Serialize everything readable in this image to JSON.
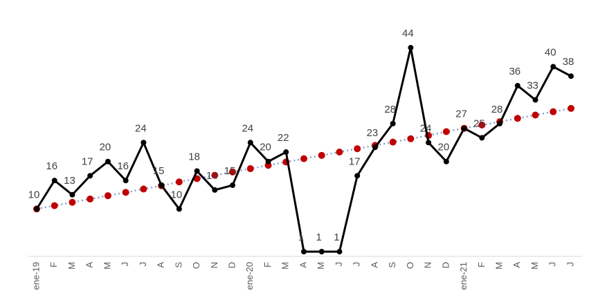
{
  "chart_data": {
    "type": "line",
    "categories": [
      "ene-19",
      "F",
      "M",
      "A",
      "M",
      "J",
      "J",
      "A",
      "S",
      "O",
      "N",
      "D",
      "ene-20",
      "F",
      "M",
      "A",
      "M",
      "J",
      "J",
      "A",
      "S",
      "O",
      "N",
      "D",
      "ene-21",
      "F",
      "M",
      "A",
      "M",
      "J",
      "J"
    ],
    "series": [
      {
        "color": "#000000",
        "data_labels": true,
        "values": [
          10,
          16,
          13,
          17,
          20,
          16,
          24,
          15,
          10,
          18,
          14,
          15,
          24,
          20,
          22,
          1,
          1,
          1,
          17,
          23,
          28,
          44,
          24,
          20,
          27,
          25,
          28,
          36,
          33,
          40,
          38
        ]
      },
      {
        "color": "#c00000",
        "line_color": "#7f9fcf",
        "data_labels": false,
        "values": [
          10.0,
          10.7,
          11.4,
          12.1,
          12.8,
          13.5,
          14.2,
          14.9,
          15.7,
          16.4,
          17.1,
          17.8,
          18.5,
          19.2,
          19.9,
          20.6,
          21.3,
          22.0,
          22.7,
          23.4,
          24.1,
          24.8,
          25.5,
          26.3,
          27.0,
          27.7,
          28.4,
          29.1,
          29.8,
          30.5,
          31.2
        ]
      }
    ],
    "ylim": [
      0,
      51
    ]
  }
}
